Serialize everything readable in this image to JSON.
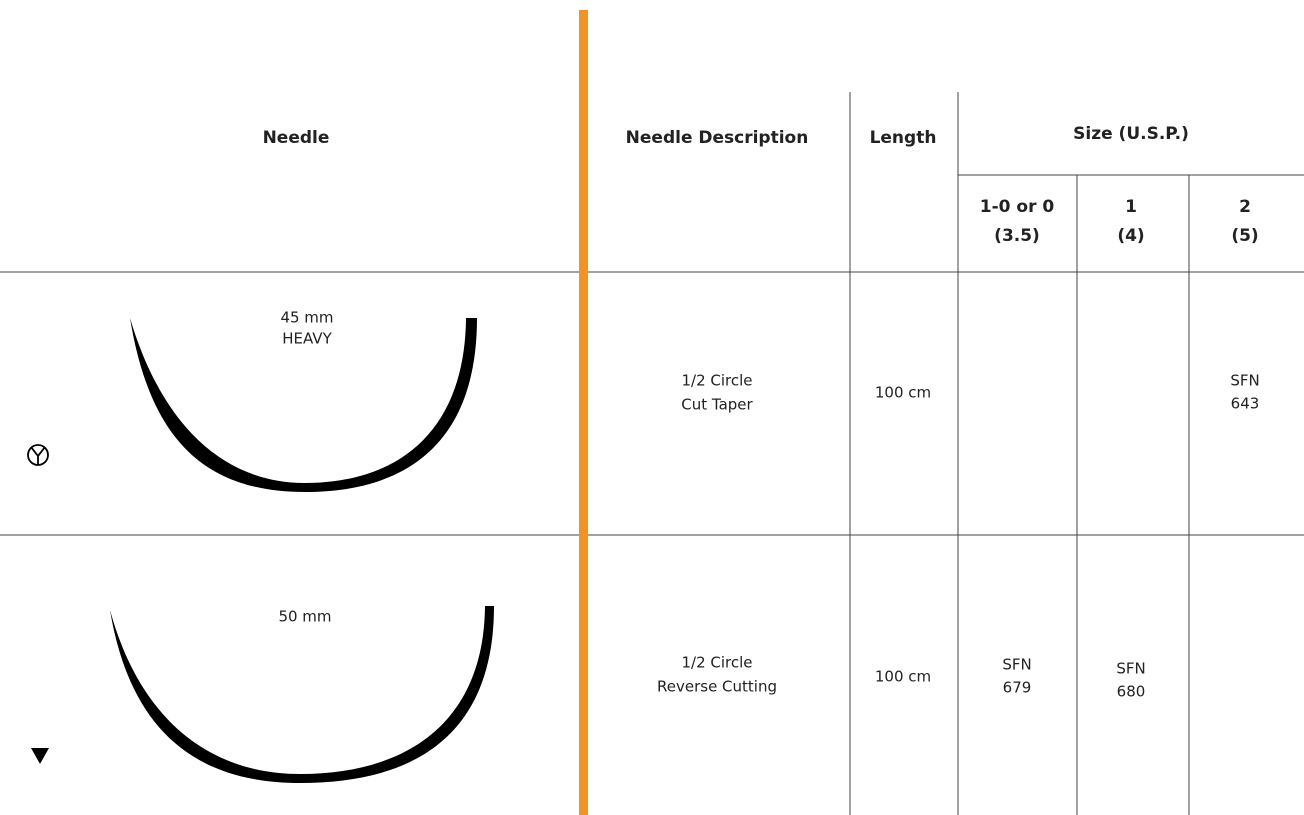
{
  "header": {
    "needle": "Needle",
    "description": "Needle Description",
    "length": "Length",
    "size": "Size (U.S.P.)",
    "size_columns": [
      [
        "1-0 or 0",
        "(3.5)"
      ],
      [
        "1",
        "(4)"
      ],
      [
        "2",
        "(5)"
      ]
    ]
  },
  "rows": [
    {
      "needle_label": [
        "45 mm",
        "HEAVY"
      ],
      "description": [
        "1/2 Circle",
        "Cut Taper"
      ],
      "length": "100 cm",
      "sizes": [
        null,
        null,
        [
          "SFN",
          "643"
        ]
      ]
    },
    {
      "needle_label": [
        "50 mm"
      ],
      "description": [
        "1/2 Circle",
        "Reverse Cutting"
      ],
      "length": "100 cm",
      "sizes": [
        [
          "SFN",
          "679"
        ],
        [
          "SFN",
          "680"
        ],
        null
      ]
    }
  ]
}
